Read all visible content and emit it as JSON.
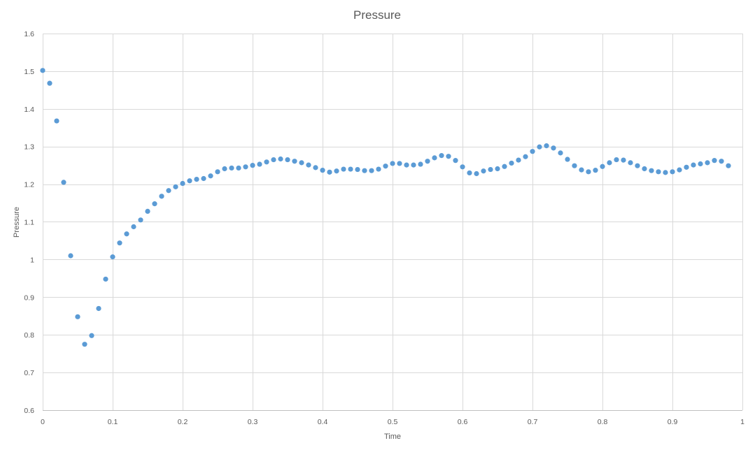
{
  "chart_data": {
    "type": "scatter",
    "title": "Pressure",
    "xlabel": "Time",
    "ylabel": "Pressure",
    "xlim": [
      0,
      1
    ],
    "ylim": [
      0.6,
      1.6
    ],
    "x_ticks": [
      "0",
      "0.1",
      "0.2",
      "0.3",
      "0.4",
      "0.5",
      "0.6",
      "0.7",
      "0.8",
      "0.9",
      "1"
    ],
    "y_ticks": [
      "0.6",
      "0.7",
      "0.8",
      "0.9",
      "1",
      "1.1",
      "1.2",
      "1.3",
      "1.4",
      "1.5",
      "1.6"
    ],
    "grid": true,
    "legend": "none",
    "marker_color": "#5b9bd5",
    "series": [
      {
        "x": [
          0,
          0.01,
          0.02,
          0.03,
          0.04,
          0.05,
          0.06,
          0.07,
          0.08,
          0.09,
          0.1,
          0.11,
          0.12,
          0.13,
          0.14,
          0.15,
          0.16,
          0.17,
          0.18,
          0.19,
          0.2,
          0.21,
          0.22,
          0.23,
          0.24,
          0.25,
          0.26,
          0.27,
          0.28,
          0.29,
          0.3,
          0.31,
          0.32,
          0.33,
          0.34,
          0.35,
          0.36,
          0.37,
          0.38,
          0.39,
          0.4,
          0.41,
          0.42,
          0.43,
          0.44,
          0.45,
          0.46,
          0.47,
          0.48,
          0.49,
          0.5,
          0.51,
          0.52,
          0.53,
          0.54,
          0.55,
          0.56,
          0.57,
          0.58,
          0.59,
          0.6,
          0.61,
          0.62,
          0.63,
          0.64,
          0.65,
          0.66,
          0.67,
          0.68,
          0.69,
          0.7,
          0.71,
          0.72,
          0.73,
          0.74,
          0.75,
          0.76,
          0.77,
          0.78,
          0.79,
          0.8,
          0.81,
          0.82,
          0.83,
          0.84,
          0.85,
          0.86,
          0.87,
          0.88,
          0.89,
          0.9,
          0.91,
          0.92,
          0.93,
          0.94,
          0.95,
          0.96,
          0.97,
          0.98
        ],
        "y": [
          1.502,
          1.468,
          1.368,
          1.205,
          1.01,
          0.848,
          0.775,
          0.798,
          0.87,
          0.948,
          1.007,
          1.044,
          1.068,
          1.087,
          1.105,
          1.128,
          1.148,
          1.168,
          1.183,
          1.193,
          1.202,
          1.209,
          1.213,
          1.215,
          1.222,
          1.233,
          1.241,
          1.243,
          1.243,
          1.246,
          1.25,
          1.253,
          1.259,
          1.265,
          1.267,
          1.265,
          1.261,
          1.257,
          1.251,
          1.244,
          1.237,
          1.232,
          1.235,
          1.24,
          1.24,
          1.239,
          1.236,
          1.236,
          1.24,
          1.248,
          1.255,
          1.255,
          1.251,
          1.251,
          1.253,
          1.261,
          1.27,
          1.276,
          1.274,
          1.263,
          1.246,
          1.23,
          1.228,
          1.235,
          1.239,
          1.241,
          1.247,
          1.256,
          1.264,
          1.273,
          1.287,
          1.299,
          1.302,
          1.296,
          1.283,
          1.266,
          1.249,
          1.238,
          1.233,
          1.237,
          1.247,
          1.257,
          1.265,
          1.264,
          1.257,
          1.249,
          1.241,
          1.236,
          1.233,
          1.231,
          1.233,
          1.238,
          1.245,
          1.251,
          1.254,
          1.257,
          1.263,
          1.261,
          1.249
        ]
      }
    ]
  }
}
